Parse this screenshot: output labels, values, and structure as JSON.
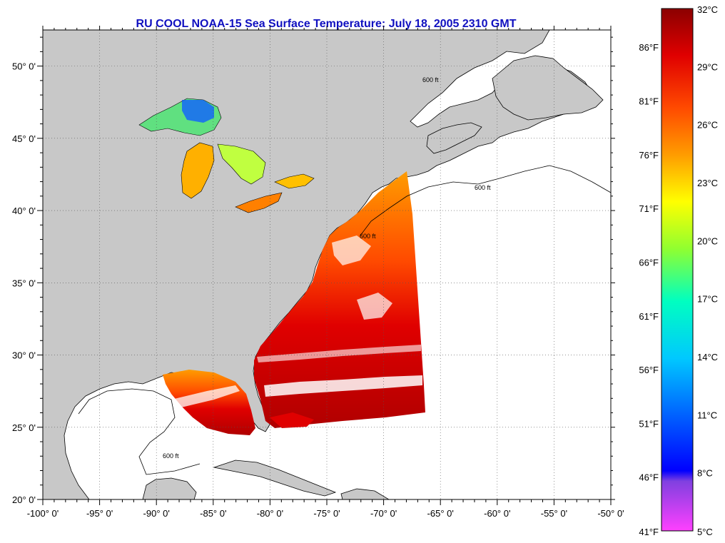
{
  "title": "RU COOL  NOAA-15  Sea Surface Temperature:  July 18, 2005 2310 GMT",
  "colors": {
    "land": "#c8c8c8",
    "ocean": "#ffffff",
    "title": "#1010c0",
    "grid": "#555555"
  },
  "axes": {
    "longitude_ticks": [
      "-100° 0'",
      "-95° 0'",
      "-90° 0'",
      "-85° 0'",
      "-80° 0'",
      "-75° 0'",
      "-70° 0'",
      "-65° 0'",
      "-60° 0'",
      "-55° 0'",
      "-50° 0'"
    ],
    "longitude_values": [
      -100,
      -95,
      -90,
      -85,
      -80,
      -75,
      -70,
      -65,
      -60,
      -55,
      -50
    ],
    "latitude_ticks": [
      "20° 0'",
      "25° 0'",
      "30° 0'",
      "35° 0'",
      "40° 0'",
      "45° 0'",
      "50° 0'"
    ],
    "latitude_values": [
      20,
      25,
      30,
      35,
      40,
      45,
      50
    ],
    "lon_range": [
      -100,
      -50
    ],
    "lat_range": [
      20,
      52.5
    ]
  },
  "colorbar": {
    "celsius_labels": [
      "32°C",
      "29°C",
      "26°C",
      "23°C",
      "20°C",
      "17°C",
      "14°C",
      "11°C",
      "8°C",
      "5°C"
    ],
    "fahrenheit_labels": [
      "86°F",
      "81°F",
      "76°F",
      "71°F",
      "66°F",
      "61°F",
      "56°F",
      "51°F",
      "46°F",
      "41°F"
    ],
    "celsius_values": [
      32,
      29,
      26,
      23,
      20,
      17,
      14,
      11,
      8,
      5
    ],
    "fahrenheit_values": [
      86,
      81,
      76,
      71,
      66,
      61,
      56,
      51,
      46,
      41
    ],
    "range_celsius": [
      5,
      32
    ],
    "gradient_stops": [
      {
        "value": 32,
        "color": "#8b0000"
      },
      {
        "value": 29.5,
        "color": "#e00000"
      },
      {
        "value": 27,
        "color": "#ff4a00"
      },
      {
        "value": 24.5,
        "color": "#ff9c00"
      },
      {
        "value": 22,
        "color": "#ffff00"
      },
      {
        "value": 19.5,
        "color": "#90ff30"
      },
      {
        "value": 17,
        "color": "#00ffc0"
      },
      {
        "value": 14,
        "color": "#00c8ff"
      },
      {
        "value": 11,
        "color": "#0060ff"
      },
      {
        "value": 8.2,
        "color": "#0000ff"
      },
      {
        "value": 7.6,
        "color": "#8040e0"
      },
      {
        "value": 5,
        "color": "#ff40ff"
      }
    ]
  },
  "contour_label": "600 ft"
}
